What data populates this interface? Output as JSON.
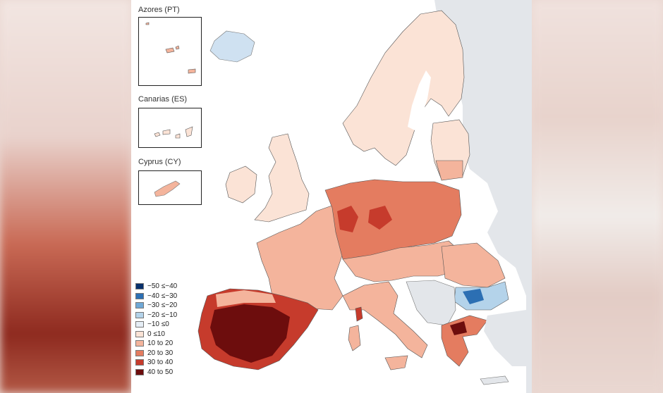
{
  "insets": [
    {
      "label": "Azores (PT)"
    },
    {
      "label": "Canarias (ES)"
    },
    {
      "label": "Cyprus (CY)"
    }
  ],
  "legend": [
    {
      "label": "−50 ≤−40",
      "color": "#08306b"
    },
    {
      "label": "−40 ≤−30",
      "color": "#2c6fb3"
    },
    {
      "label": "−30 ≤−20",
      "color": "#6fa8d6"
    },
    {
      "label": "−20 ≤−10",
      "color": "#b4d3ea"
    },
    {
      "label": "−10 ≤0",
      "color": "#e6eef6"
    },
    {
      "label": "0 ≤10",
      "color": "#fbe3d6"
    },
    {
      "label": "10 to 20",
      "color": "#f4b49c"
    },
    {
      "label": "20 to 30",
      "color": "#e47c60"
    },
    {
      "label": "30 to 40",
      "color": "#c63b2c"
    },
    {
      "label": "40 to 50",
      "color": "#6d0d0d"
    }
  ],
  "colors": {
    "sea": "#ffffff",
    "non_eu_land": "#e3e6ea",
    "iceland": "#cfe1f1",
    "scandinavia": "#fbe3d6",
    "uk": "#fbe3d6",
    "west_europe": "#f4b49c",
    "central_europe": "#e47c60",
    "spain": "#6d0d0d",
    "red": "#c63b2c",
    "bulgaria": "#2c6fb3",
    "border": "#555555"
  }
}
